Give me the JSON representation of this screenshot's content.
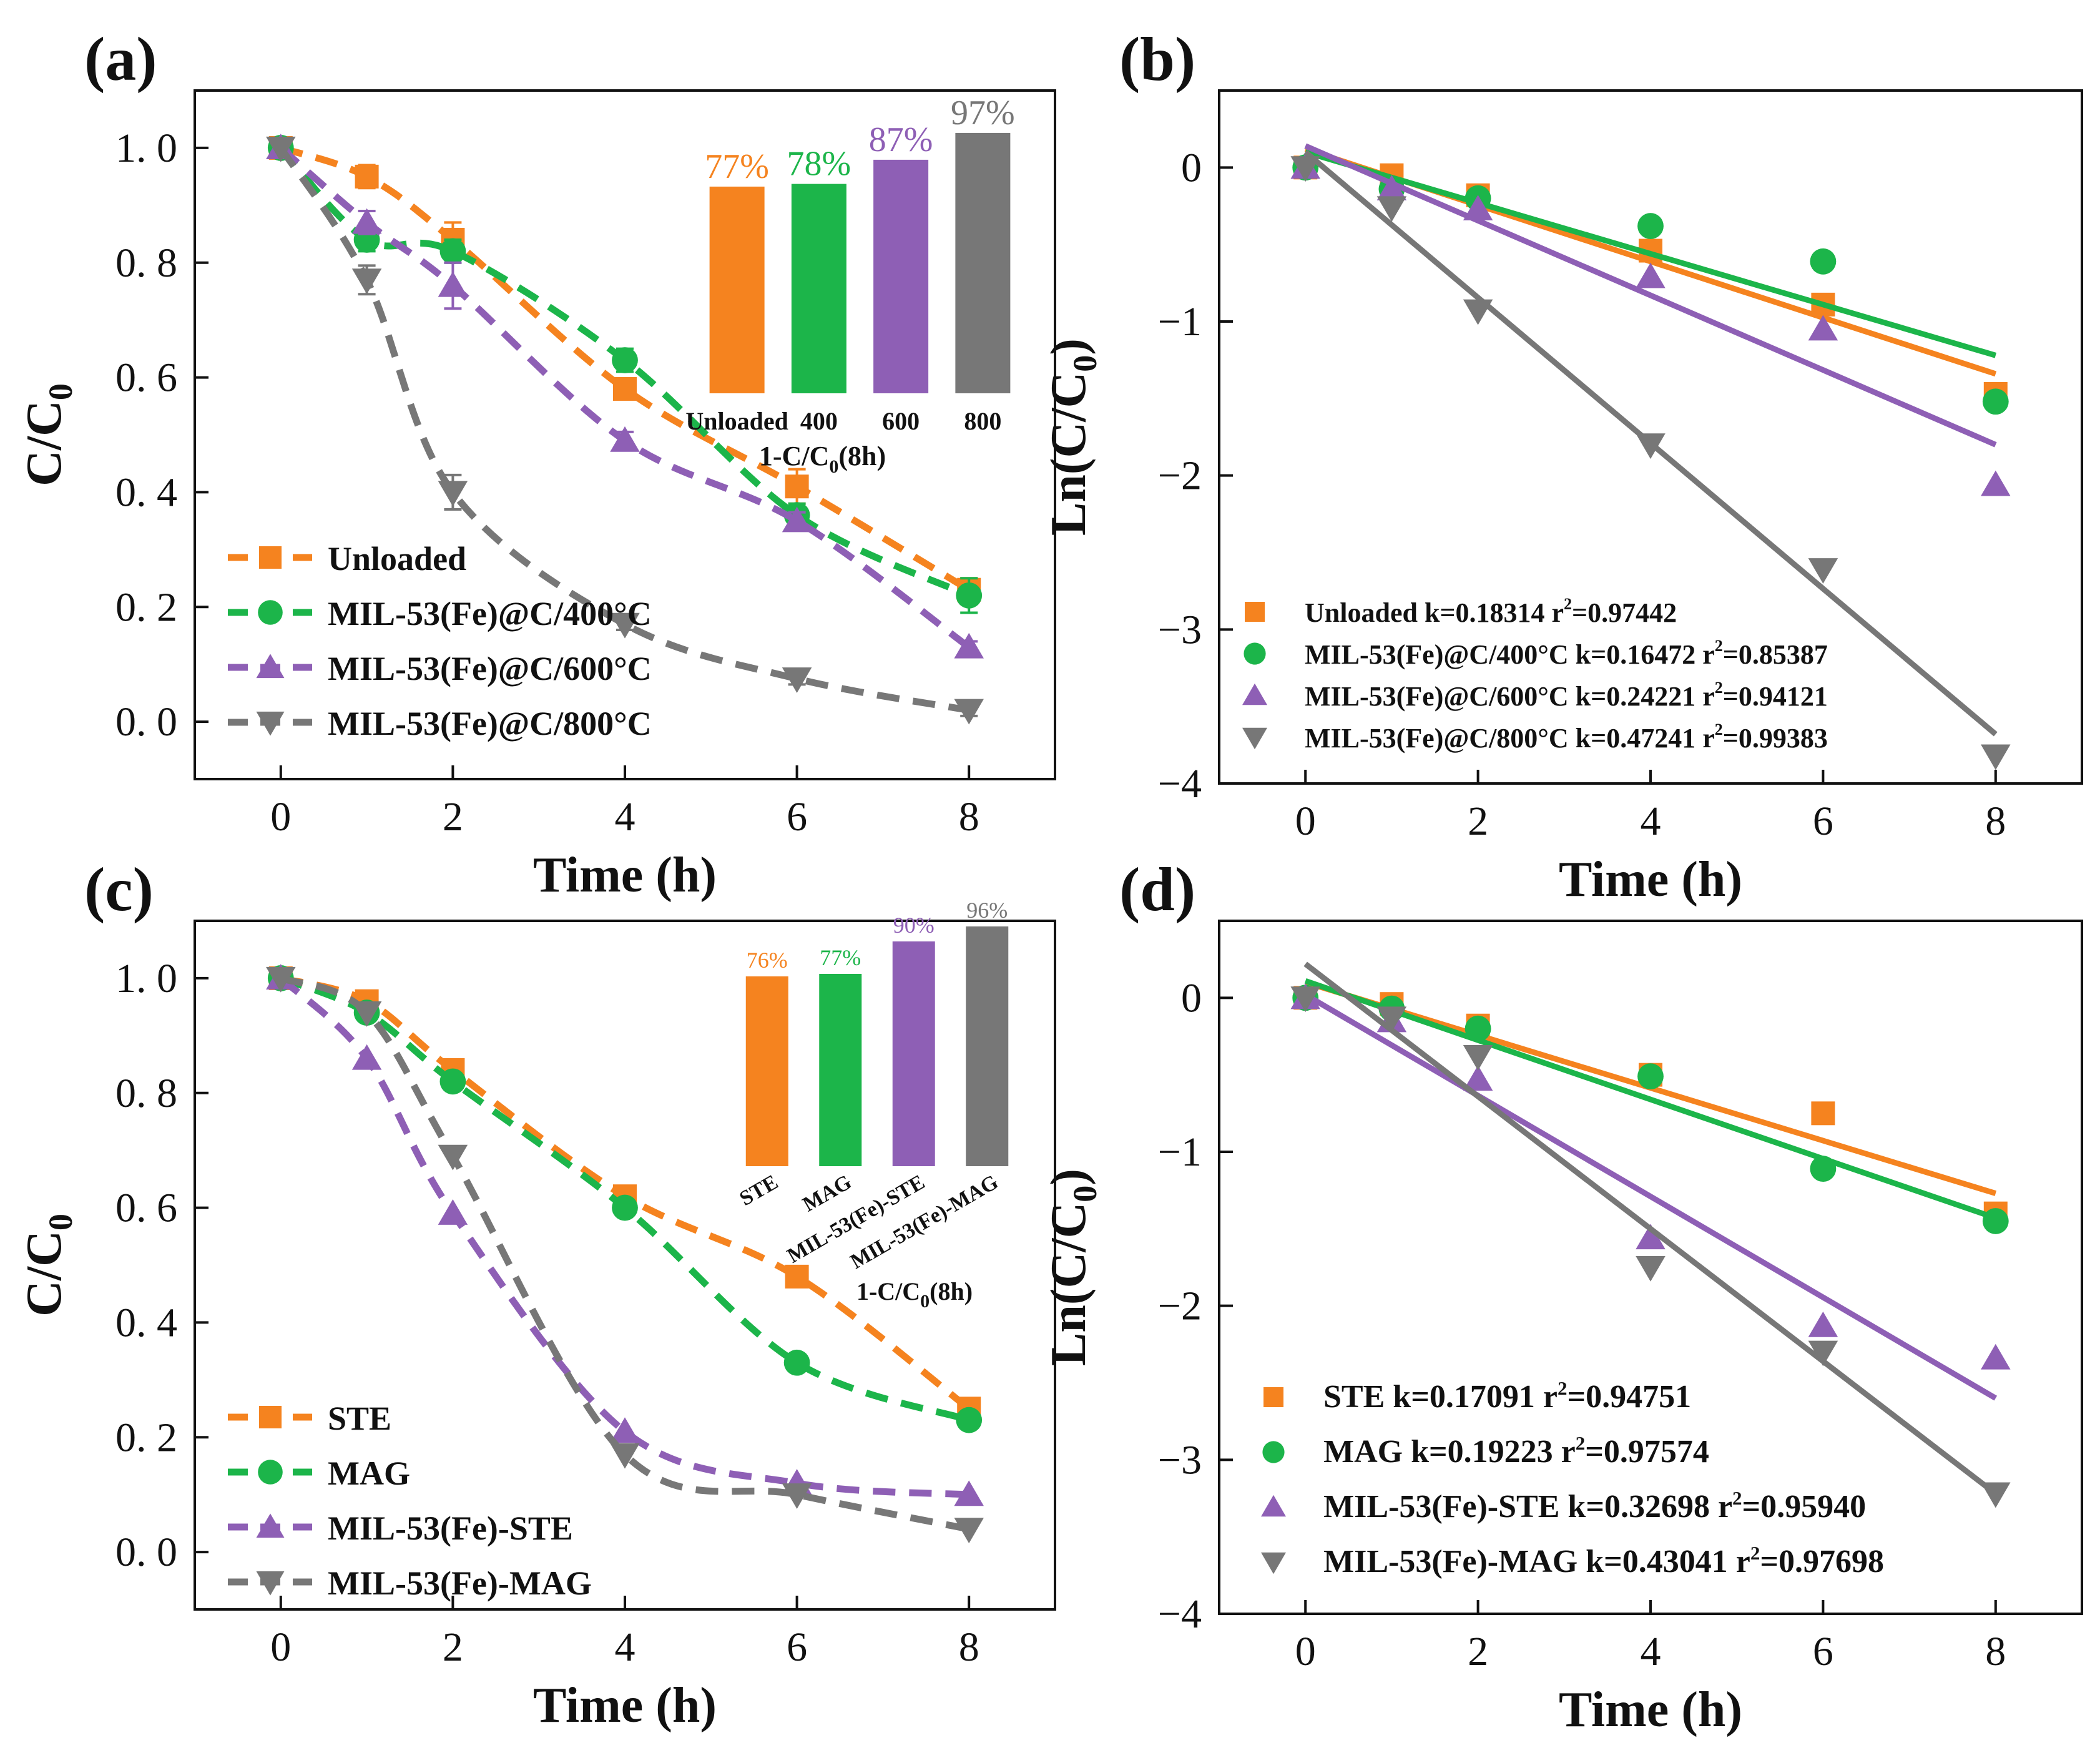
{
  "colors": {
    "orange": "#F5831F",
    "green": "#1CB54A",
    "purple": "#8E5FB5",
    "gray": "#777777"
  },
  "chart_data": [
    {
      "type": "line",
      "panel": "a",
      "label": "(a)",
      "xlabel": "Time (h)",
      "ylabel_main": "C/C",
      "ylabel_sub": "0",
      "x": [
        0,
        1,
        2,
        4,
        6,
        8
      ],
      "xlim": [
        -1,
        9
      ],
      "ylim": [
        -0.1,
        1.1
      ],
      "xticks": [
        "0",
        "2",
        "4",
        "6",
        "8"
      ],
      "xtick_values": [
        0,
        2,
        4,
        6,
        8
      ],
      "yticks": [
        "0. 0",
        "0. 2",
        "0. 4",
        "0. 6",
        "0. 8",
        "1. 0"
      ],
      "ytick_values": [
        0,
        0.2,
        0.4,
        0.6,
        0.8,
        1.0
      ],
      "legend_position": "bottom-left",
      "series": [
        {
          "name": "Unloaded",
          "color": "#F5831F",
          "marker": "square",
          "values": [
            1.0,
            0.95,
            0.84,
            0.58,
            0.41,
            0.23
          ],
          "errors": [
            0,
            0.02,
            0.03,
            0.015,
            0.03,
            0.02
          ]
        },
        {
          "name": "MIL-53(Fe)@C/400°C",
          "color": "#1CB54A",
          "marker": "circle",
          "values": [
            1.0,
            0.84,
            0.82,
            0.63,
            0.36,
            0.22
          ],
          "errors": [
            0,
            0.02,
            0.02,
            0.02,
            0.02,
            0.03
          ]
        },
        {
          "name": "MIL-53(Fe)@C/600°C",
          "color": "#8E5FB5",
          "marker": "triangle-up",
          "values": [
            1.0,
            0.87,
            0.76,
            0.49,
            0.35,
            0.13
          ],
          "errors": [
            0,
            0.02,
            0.04,
            0.015,
            0.015,
            0.01
          ]
        },
        {
          "name": "MIL-53(Fe)@C/800°C",
          "color": "#777777",
          "marker": "triangle-down",
          "values": [
            1.0,
            0.77,
            0.4,
            0.17,
            0.075,
            0.02
          ],
          "errors": [
            0,
            0.025,
            0.03,
            0.01,
            0.01,
            0.01
          ]
        }
      ],
      "inset": {
        "type": "bar",
        "categories": [
          "Unloaded",
          "400",
          "600",
          "800"
        ],
        "values": [
          77,
          78,
          87,
          97
        ],
        "labels": [
          "77%",
          "78%",
          "87%",
          "97%"
        ],
        "colors": [
          "#F5831F",
          "#1CB54A",
          "#8E5FB5",
          "#777777"
        ],
        "xlabel_main": "1-C/C",
        "xlabel_sub": "0",
        "xlabel_tail": "(8h)",
        "ylim": [
          0,
          100
        ]
      }
    },
    {
      "type": "scatter",
      "panel": "b",
      "label": "(b)",
      "xlabel": "Time (h)",
      "ylabel_main": "Ln(C/C",
      "ylabel_sub": "0",
      "ylabel_tail": ")",
      "x": [
        0,
        1,
        2,
        4,
        6,
        8
      ],
      "xlim": [
        -1,
        9
      ],
      "ylim": [
        -4,
        0.5
      ],
      "xticks": [
        "0",
        "2",
        "4",
        "6",
        "8"
      ],
      "xtick_values": [
        0,
        2,
        4,
        6,
        8
      ],
      "yticks": [
        "0",
        "−1",
        "−2",
        "−3",
        "−4"
      ],
      "ytick_values": [
        0,
        -1,
        -2,
        -3,
        -4
      ],
      "legend_position": "bottom-left",
      "series": [
        {
          "name": "Unloaded",
          "fit_text": "k=0.18314 r",
          "r2_sup": "2",
          "r2_val": "=0.97442",
          "color": "#F5831F",
          "marker": "square",
          "values": [
            0,
            -0.05,
            -0.18,
            -0.54,
            -0.89,
            -1.47
          ],
          "fit": [
            0.12,
            -1.34
          ]
        },
        {
          "name": "MIL-53(Fe)@C/400°C",
          "fit_text": "k=0.16472 r",
          "r2_sup": "2",
          "r2_val": "=0.85387",
          "color": "#1CB54A",
          "marker": "circle",
          "values": [
            0,
            -0.14,
            -0.2,
            -0.38,
            -0.61,
            -1.52
          ],
          "fit": [
            0.1,
            -1.22
          ]
        },
        {
          "name": "MIL-53(Fe)@C/600°C",
          "fit_text": "k=0.24221 r",
          "r2_sup": "2",
          "r2_val": "=0.94121",
          "color": "#8E5FB5",
          "marker": "triangle-up",
          "values": [
            0,
            -0.14,
            -0.27,
            -0.71,
            -1.05,
            -2.06
          ],
          "fit": [
            0.14,
            -1.8
          ]
        },
        {
          "name": "MIL-53(Fe)@C/800°C",
          "fit_text": "k=0.47241 r",
          "r2_sup": "2",
          "r2_val": "=0.99383",
          "color": "#777777",
          "marker": "triangle-down",
          "values": [
            0,
            -0.26,
            -0.93,
            -1.8,
            -2.61,
            -3.82
          ],
          "fit": [
            0.1,
            -3.68
          ]
        }
      ]
    },
    {
      "type": "line",
      "panel": "c",
      "label": "(c)",
      "xlabel": "Time (h)",
      "ylabel_main": "C/C",
      "ylabel_sub": "0",
      "x": [
        0,
        1,
        2,
        4,
        6,
        8
      ],
      "xlim": [
        -1,
        9
      ],
      "ylim": [
        -0.1,
        1.1
      ],
      "xticks": [
        "0",
        "2",
        "4",
        "6",
        "8"
      ],
      "xtick_values": [
        0,
        2,
        4,
        6,
        8
      ],
      "yticks": [
        "0. 0",
        "0. 2",
        "0. 4",
        "0. 6",
        "0. 8",
        "1. 0"
      ],
      "ytick_values": [
        0,
        0.2,
        0.4,
        0.6,
        0.8,
        1.0
      ],
      "legend_position": "bottom-left",
      "series": [
        {
          "name": "STE",
          "color": "#F5831F",
          "marker": "square",
          "values": [
            1.0,
            0.96,
            0.84,
            0.62,
            0.48,
            0.25
          ],
          "errors": [
            0,
            0,
            0,
            0,
            0,
            0
          ]
        },
        {
          "name": "MAG",
          "color": "#1CB54A",
          "marker": "circle",
          "values": [
            1.0,
            0.94,
            0.82,
            0.6,
            0.33,
            0.23
          ],
          "errors": [
            0,
            0,
            0,
            0,
            0,
            0
          ]
        },
        {
          "name": "MIL-53(Fe)-STE",
          "color": "#8E5FB5",
          "marker": "triangle-up",
          "values": [
            1.0,
            0.86,
            0.59,
            0.21,
            0.12,
            0.1
          ],
          "errors": [
            0,
            0,
            0,
            0,
            0,
            0
          ]
        },
        {
          "name": "MIL-53(Fe)-MAG",
          "color": "#777777",
          "marker": "triangle-down",
          "values": [
            1.0,
            0.94,
            0.69,
            0.17,
            0.1,
            0.04
          ],
          "errors": [
            0,
            0,
            0,
            0,
            0,
            0
          ]
        }
      ],
      "inset": {
        "type": "bar",
        "categories": [
          "STE",
          "MAG",
          "MIL-53(Fe)-STE",
          "MIL-53(Fe)-MAG"
        ],
        "values": [
          76,
          77,
          90,
          96
        ],
        "labels": [
          "76%",
          "77%",
          "90%",
          "96%"
        ],
        "colors": [
          "#F5831F",
          "#1CB54A",
          "#8E5FB5",
          "#777777"
        ],
        "xlabel_main": "1-C/C",
        "xlabel_sub": "0",
        "xlabel_tail": "(8h)",
        "ylim": [
          0,
          100
        ]
      }
    },
    {
      "type": "scatter",
      "panel": "d",
      "label": "(d)",
      "xlabel": "Time (h)",
      "ylabel_main": "Ln(C/C",
      "ylabel_sub": "0",
      "ylabel_tail": ")",
      "x": [
        0,
        1,
        2,
        4,
        6,
        8
      ],
      "xlim": [
        -1,
        9
      ],
      "ylim": [
        -4,
        0.5
      ],
      "xticks": [
        "0",
        "2",
        "4",
        "6",
        "8"
      ],
      "xtick_values": [
        0,
        2,
        4,
        6,
        8
      ],
      "yticks": [
        "0",
        "−1",
        "−2",
        "−3",
        "−4"
      ],
      "ytick_values": [
        0,
        -1,
        -2,
        -3,
        -4
      ],
      "legend_position": "bottom-left",
      "series": [
        {
          "name": "STE",
          "fit_text": "k=0.17091  r",
          "r2_sup": "2",
          "r2_val": "=0.94751",
          "color": "#F5831F",
          "marker": "square",
          "values": [
            0,
            -0.04,
            -0.18,
            -0.5,
            -0.75,
            -1.4
          ],
          "fit": [
            0.1,
            -1.27
          ]
        },
        {
          "name": "MAG",
          "fit_text": "k=0.19223  r",
          "r2_sup": "2",
          "r2_val": "=0.97574",
          "color": "#1CB54A",
          "marker": "circle",
          "values": [
            0,
            -0.07,
            -0.2,
            -0.51,
            -1.11,
            -1.45
          ],
          "fit": [
            0.11,
            -1.43
          ]
        },
        {
          "name": "MIL-53(Fe)-STE",
          "fit_text": "k=0.32698  r",
          "r2_sup": "2",
          "r2_val": "=0.95940",
          "color": "#8E5FB5",
          "marker": "triangle-up",
          "values": [
            0,
            -0.15,
            -0.53,
            -1.56,
            -2.13,
            -2.34
          ],
          "fit": [
            0.02,
            -2.6
          ]
        },
        {
          "name": "MIL-53(Fe)-MAG",
          "fit_text": "k=0.43041  r",
          "r2_sup": "2",
          "r2_val": "=0.97698",
          "color": "#777777",
          "marker": "triangle-down",
          "values": [
            0,
            -0.13,
            -0.38,
            -1.75,
            -2.3,
            -3.22
          ],
          "fit": [
            0.22,
            -3.22
          ]
        }
      ]
    }
  ]
}
